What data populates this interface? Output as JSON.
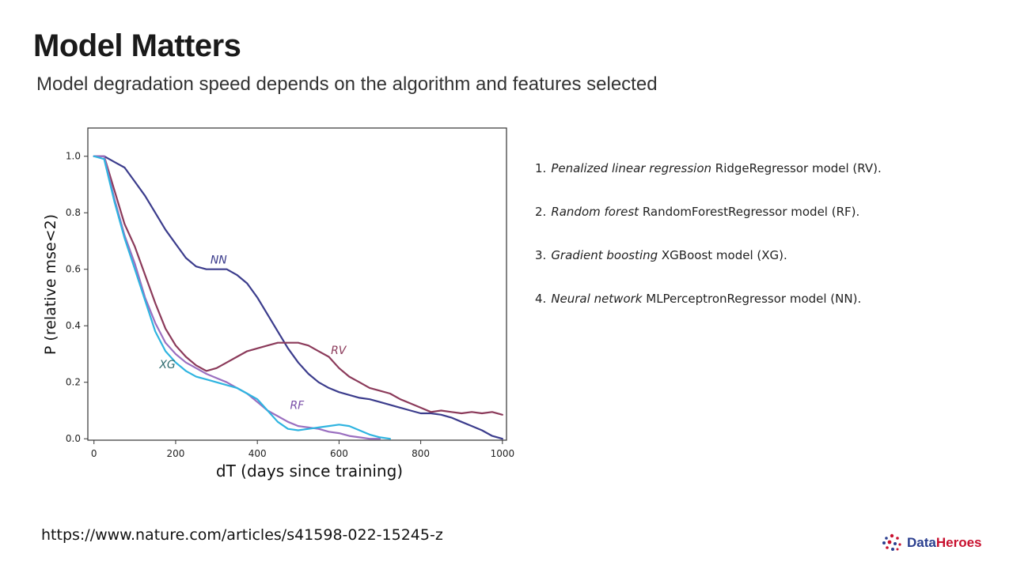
{
  "slide": {
    "title": "Model Matters",
    "subtitle": "Model degradation speed depends on the algorithm and features selected",
    "source": "https://www.nature.com/articles/s41598-022-15245-z",
    "brand": {
      "name_part1": "Data",
      "name_part2": "Heroes",
      "icon": "dots-logo-icon",
      "colors": {
        "data": "#2b3f8f",
        "heroes": "#c8102e"
      }
    }
  },
  "legend": [
    {
      "num": "1.",
      "italic": "Penalized linear regression",
      "rest": " RidgeRegressor model (RV)."
    },
    {
      "num": "2.",
      "italic": "Random forest",
      "rest": " RandomForestRegressor model (RF)."
    },
    {
      "num": "3.",
      "italic": "Gradient boosting",
      "rest": " XGBoost model (XG)."
    },
    {
      "num": "4.",
      "italic": "Neural network",
      "rest": " MLPerceptronRegressor model (NN)."
    }
  ],
  "chart_data": {
    "type": "line",
    "xlabel": "dT (days since training)",
    "ylabel": "P (relative mse<2)",
    "xlim": [
      -15,
      1010
    ],
    "ylim": [
      -0.005,
      1.1
    ],
    "xticks": [
      "0",
      "200",
      "400",
      "600",
      "800",
      "1000"
    ],
    "yticks": [
      "0.0",
      "0.2",
      "0.4",
      "0.6",
      "0.8",
      "1.0"
    ],
    "grid": false,
    "series": [
      {
        "name": "NN",
        "color": "#3b3c8c",
        "x": [
          0,
          25,
          50,
          75,
          100,
          125,
          150,
          175,
          200,
          225,
          250,
          275,
          300,
          325,
          350,
          375,
          400,
          425,
          450,
          475,
          500,
          525,
          550,
          575,
          600,
          625,
          650,
          675,
          700,
          725,
          750,
          775,
          800,
          825,
          850,
          875,
          900,
          925,
          950,
          975,
          1000
        ],
        "y": [
          1.0,
          1.0,
          0.98,
          0.96,
          0.91,
          0.86,
          0.8,
          0.74,
          0.69,
          0.64,
          0.61,
          0.6,
          0.6,
          0.6,
          0.58,
          0.55,
          0.5,
          0.44,
          0.38,
          0.32,
          0.27,
          0.23,
          0.2,
          0.18,
          0.165,
          0.155,
          0.145,
          0.14,
          0.13,
          0.12,
          0.11,
          0.1,
          0.09,
          0.09,
          0.085,
          0.075,
          0.06,
          0.045,
          0.03,
          0.01,
          0.0
        ]
      },
      {
        "name": "RV",
        "color": "#8b3a5a",
        "x": [
          0,
          25,
          50,
          75,
          100,
          125,
          150,
          175,
          200,
          225,
          250,
          275,
          300,
          325,
          350,
          375,
          400,
          425,
          450,
          475,
          500,
          525,
          550,
          575,
          600,
          625,
          650,
          675,
          700,
          725,
          750,
          775,
          800,
          825,
          850,
          875,
          900,
          925,
          950,
          975,
          1000
        ],
        "y": [
          1.0,
          1.0,
          0.88,
          0.76,
          0.68,
          0.58,
          0.48,
          0.39,
          0.33,
          0.29,
          0.26,
          0.24,
          0.25,
          0.27,
          0.29,
          0.31,
          0.32,
          0.33,
          0.34,
          0.34,
          0.34,
          0.33,
          0.31,
          0.29,
          0.25,
          0.22,
          0.2,
          0.18,
          0.17,
          0.16,
          0.14,
          0.125,
          0.11,
          0.095,
          0.1,
          0.095,
          0.09,
          0.095,
          0.09,
          0.095,
          0.085
        ]
      },
      {
        "name": "RF",
        "color": "#9a6fc0",
        "x": [
          0,
          25,
          50,
          75,
          100,
          125,
          150,
          175,
          200,
          225,
          250,
          275,
          300,
          325,
          350,
          375,
          400,
          425,
          450,
          475,
          500,
          525,
          550,
          575,
          600,
          625,
          650,
          675,
          700
        ],
        "y": [
          1.0,
          1.0,
          0.85,
          0.72,
          0.62,
          0.5,
          0.41,
          0.34,
          0.3,
          0.27,
          0.25,
          0.23,
          0.215,
          0.2,
          0.18,
          0.16,
          0.13,
          0.1,
          0.08,
          0.06,
          0.045,
          0.04,
          0.035,
          0.025,
          0.02,
          0.01,
          0.005,
          0.0,
          0.0
        ]
      },
      {
        "name": "XG",
        "color": "#2fb4e0",
        "x": [
          0,
          25,
          50,
          75,
          100,
          125,
          150,
          175,
          200,
          225,
          250,
          275,
          300,
          325,
          350,
          375,
          400,
          425,
          450,
          475,
          500,
          525,
          550,
          575,
          600,
          625,
          650,
          675,
          700,
          725
        ],
        "y": [
          1.0,
          0.99,
          0.84,
          0.71,
          0.6,
          0.49,
          0.38,
          0.31,
          0.27,
          0.24,
          0.22,
          0.21,
          0.2,
          0.19,
          0.18,
          0.16,
          0.14,
          0.1,
          0.06,
          0.035,
          0.03,
          0.035,
          0.04,
          0.045,
          0.05,
          0.045,
          0.03,
          0.015,
          0.005,
          0.0
        ]
      }
    ],
    "annotations": [
      {
        "text": "NN",
        "x": 285,
        "y": 0.62,
        "color": "#3b3c8c"
      },
      {
        "text": "RV",
        "x": 580,
        "y": 0.3,
        "color": "#8b3a5a"
      },
      {
        "text": "RF",
        "x": 480,
        "y": 0.105,
        "color": "#7a4fa8"
      },
      {
        "text": "XG",
        "x": 160,
        "y": 0.25,
        "color": "#2e6b6e"
      }
    ]
  }
}
